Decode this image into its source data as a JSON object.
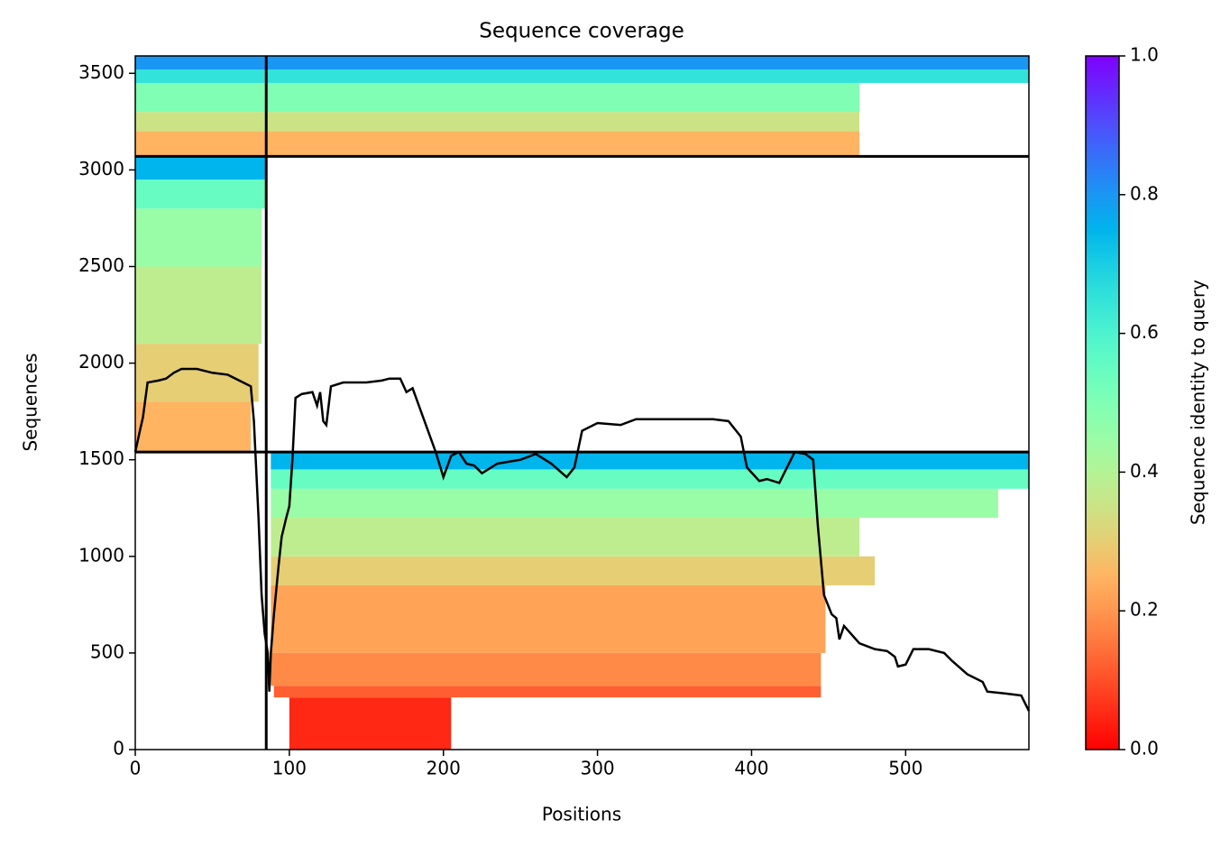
{
  "chart_data": {
    "type": "coverage",
    "title": "Sequence coverage",
    "xlabel": "Positions",
    "ylabel": "Sequences",
    "xlim": [
      0,
      580
    ],
    "ylim": [
      0,
      3590
    ],
    "xticks": [
      0,
      100,
      200,
      300,
      400,
      500
    ],
    "yticks": [
      0,
      500,
      1000,
      1500,
      2000,
      2500,
      3000,
      3500
    ],
    "colormap": "rainbow_r",
    "colorbar": {
      "label": "Sequence identity to query",
      "lim": [
        0,
        1
      ],
      "ticks": [
        {
          "value": 0,
          "label": "0.0"
        },
        {
          "value": 0.2,
          "label": "0.2"
        },
        {
          "value": 0.4,
          "label": "0.4"
        },
        {
          "value": 0.6,
          "label": "0.6"
        },
        {
          "value": 0.8,
          "label": "0.8"
        },
        {
          "value": 1,
          "label": "1.0"
        }
      ]
    },
    "blocks": [
      {
        "x": [
          100,
          205
        ],
        "y": [
          0,
          270
        ],
        "identity": 0.05
      },
      {
        "x": [
          90,
          445
        ],
        "y": [
          270,
          330
        ],
        "identity": 0.12
      },
      {
        "x": [
          88,
          445
        ],
        "y": [
          330,
          500
        ],
        "identity": 0.18
      },
      {
        "x": [
          88,
          448
        ],
        "y": [
          500,
          850
        ],
        "identity": 0.22
      },
      {
        "x": [
          88,
          480
        ],
        "y": [
          850,
          1000
        ],
        "identity": 0.3
      },
      {
        "x": [
          88,
          470
        ],
        "y": [
          1000,
          1200
        ],
        "identity": 0.38
      },
      {
        "x": [
          88,
          560
        ],
        "y": [
          1200,
          1350
        ],
        "identity": 0.45
      },
      {
        "x": [
          88,
          580
        ],
        "y": [
          1350,
          1450
        ],
        "identity": 0.55
      },
      {
        "x": [
          88,
          580
        ],
        "y": [
          1450,
          1540
        ],
        "identity": 0.75
      },
      {
        "x": [
          0,
          75
        ],
        "y": [
          1540,
          1800
        ],
        "identity": 0.25
      },
      {
        "x": [
          0,
          80
        ],
        "y": [
          1800,
          2100
        ],
        "identity": 0.3
      },
      {
        "x": [
          0,
          82
        ],
        "y": [
          2100,
          2500
        ],
        "identity": 0.38
      },
      {
        "x": [
          0,
          82
        ],
        "y": [
          2500,
          2800
        ],
        "identity": 0.45
      },
      {
        "x": [
          0,
          85
        ],
        "y": [
          2800,
          2950
        ],
        "identity": 0.55
      },
      {
        "x": [
          0,
          85
        ],
        "y": [
          2950,
          3070
        ],
        "identity": 0.75
      },
      {
        "x": [
          0,
          470
        ],
        "y": [
          3070,
          3200
        ],
        "identity": 0.25
      },
      {
        "x": [
          0,
          470
        ],
        "y": [
          3200,
          3300
        ],
        "identity": 0.35
      },
      {
        "x": [
          0,
          470
        ],
        "y": [
          3300,
          3450
        ],
        "identity": 0.5
      },
      {
        "x": [
          0,
          580
        ],
        "y": [
          3450,
          3520
        ],
        "identity": 0.65
      },
      {
        "x": [
          0,
          580
        ],
        "y": [
          3520,
          3590
        ],
        "identity": 0.8
      }
    ],
    "dividers": {
      "y": [
        1540,
        3070
      ],
      "x": [
        85
      ]
    },
    "coverage": {
      "color": "#000000",
      "x": [
        0,
        3,
        5,
        8,
        15,
        20,
        25,
        30,
        40,
        50,
        60,
        70,
        75,
        77,
        80,
        82,
        84,
        86,
        87,
        88,
        90,
        93,
        95,
        98,
        100,
        102,
        104,
        108,
        115,
        118,
        120,
        122,
        124,
        127,
        135,
        150,
        160,
        165,
        172,
        176,
        180,
        185,
        190,
        195,
        200,
        205,
        210,
        215,
        220,
        225,
        235,
        250,
        260,
        270,
        280,
        285,
        290,
        300,
        315,
        325,
        350,
        375,
        385,
        393,
        397,
        405,
        410,
        418,
        428,
        435,
        440,
        443,
        447,
        452,
        455,
        457,
        460,
        470,
        480,
        488,
        493,
        495,
        500,
        505,
        515,
        525,
        530,
        540,
        550,
        553,
        565,
        575,
        580
      ],
      "values": [
        1540,
        1650,
        1720,
        1900,
        1910,
        1920,
        1950,
        1970,
        1970,
        1950,
        1940,
        1900,
        1880,
        1700,
        1200,
        800,
        600,
        500,
        300,
        500,
        700,
        950,
        1100,
        1200,
        1260,
        1500,
        1820,
        1840,
        1850,
        1780,
        1850,
        1700,
        1680,
        1880,
        1900,
        1900,
        1910,
        1920,
        1920,
        1850,
        1870,
        1760,
        1650,
        1540,
        1410,
        1520,
        1540,
        1480,
        1470,
        1430,
        1480,
        1500,
        1530,
        1480,
        1410,
        1460,
        1650,
        1690,
        1680,
        1710,
        1710,
        1710,
        1700,
        1620,
        1460,
        1390,
        1400,
        1380,
        1540,
        1530,
        1500,
        1160,
        800,
        700,
        680,
        570,
        640,
        550,
        520,
        510,
        480,
        430,
        440,
        520,
        520,
        500,
        460,
        390,
        350,
        300,
        290,
        280,
        200
      ]
    }
  }
}
